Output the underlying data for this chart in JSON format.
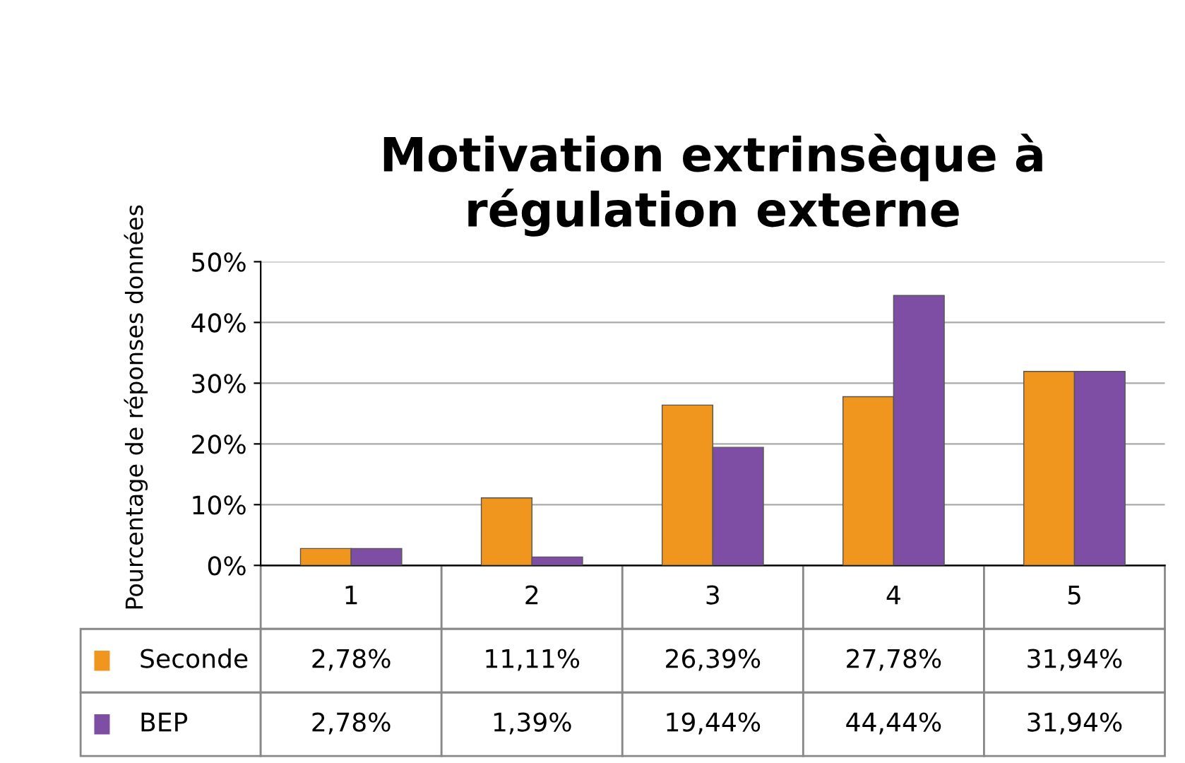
{
  "chart_data": {
    "type": "bar",
    "title": "Motivation extrinsèque à\nrégulation externe",
    "ylabel": "Pourcentage de réponses données",
    "categories": [
      "1",
      "2",
      "3",
      "4",
      "5"
    ],
    "series": [
      {
        "name": "Seconde",
        "color": "#f0961e",
        "values": [
          2.78,
          11.11,
          26.39,
          27.78,
          31.94
        ],
        "value_labels": [
          "2,78%",
          "11,11%",
          "26,39%",
          "27,78%",
          "31,94%"
        ]
      },
      {
        "name": "BEP",
        "color": "#7d4ea3",
        "values": [
          2.78,
          1.39,
          19.44,
          44.44,
          31.94
        ],
        "value_labels": [
          "2,78%",
          "1,39%",
          "19,44%",
          "44,44%",
          "31,94%"
        ]
      }
    ],
    "ylim": [
      0,
      50
    ],
    "yticks": [
      {
        "value": 0,
        "label": "0%"
      },
      {
        "value": 10,
        "label": "10%"
      },
      {
        "value": 20,
        "label": "20%"
      },
      {
        "value": 30,
        "label": "30%"
      },
      {
        "value": 40,
        "label": "40%"
      },
      {
        "value": 50,
        "label": "50%"
      }
    ],
    "grid": "y",
    "legend": "bottom"
  }
}
